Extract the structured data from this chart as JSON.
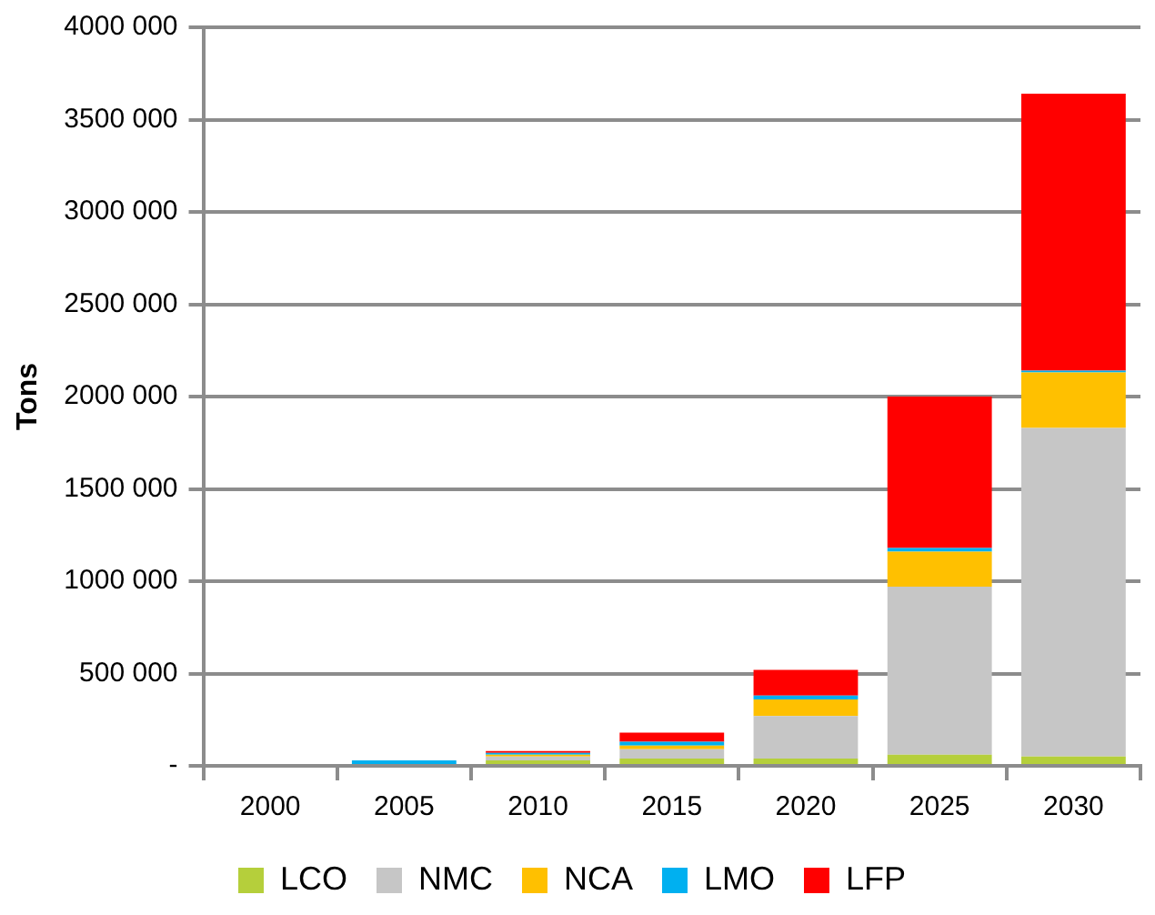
{
  "chart_data": {
    "type": "bar",
    "stacked": true,
    "ylabel": "Tons",
    "categories": [
      "2000",
      "2005",
      "2010",
      "2015",
      "2020",
      "2025",
      "2030"
    ],
    "series": [
      {
        "name": "LCO",
        "color": "#b5cf3b",
        "values": [
          10000,
          0,
          30000,
          40000,
          40000,
          60000,
          50000
        ]
      },
      {
        "name": "NMC",
        "color": "#c6c6c6",
        "values": [
          0,
          0,
          20000,
          50000,
          230000,
          910000,
          1780000
        ]
      },
      {
        "name": "NCA",
        "color": "#ffc000",
        "values": [
          0,
          0,
          10000,
          20000,
          90000,
          190000,
          300000
        ]
      },
      {
        "name": "LMO",
        "color": "#00b0f0",
        "values": [
          0,
          30000,
          10000,
          20000,
          20000,
          20000,
          10000
        ]
      },
      {
        "name": "LFP",
        "color": "#ff0000",
        "values": [
          0,
          0,
          10000,
          50000,
          140000,
          820000,
          1500000
        ]
      }
    ],
    "ylim": [
      0,
      4000000
    ],
    "yticks": [
      {
        "value": 0,
        "label": "-"
      },
      {
        "value": 500000,
        "label": "500 000"
      },
      {
        "value": 1000000,
        "label": "1000 000"
      },
      {
        "value": 1500000,
        "label": "1500 000"
      },
      {
        "value": 2000000,
        "label": "2000 000"
      },
      {
        "value": 2500000,
        "label": "2500 000"
      },
      {
        "value": 3000000,
        "label": "3000 000"
      },
      {
        "value": 3500000,
        "label": "3500 000"
      },
      {
        "value": 4000000,
        "label": "4000 000"
      }
    ],
    "grid": "y",
    "legend": "bottom"
  }
}
